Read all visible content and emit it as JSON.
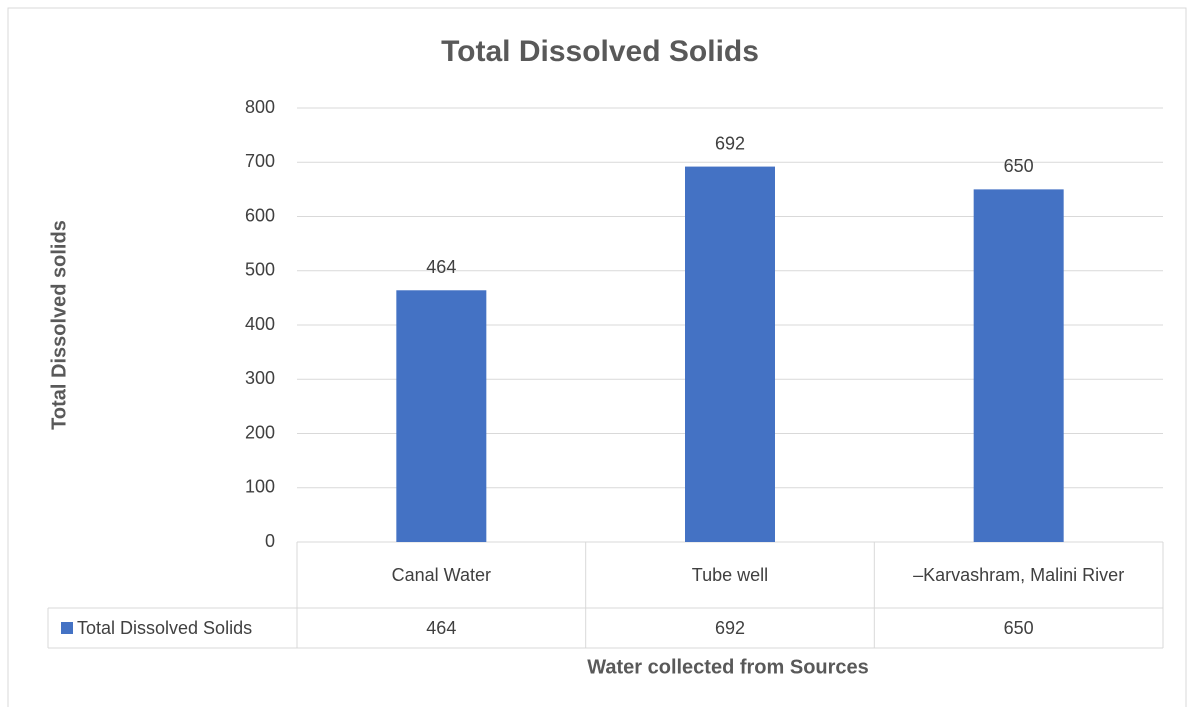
{
  "chart_data": {
    "type": "bar",
    "title": "Total Dissolved Solids",
    "x_label": "Water collected from Sources",
    "y_label": "Total Dissolved solids",
    "categories": [
      "Canal Water",
      "Tube well",
      "–Karvashram, Malini River"
    ],
    "series": [
      {
        "name": "Total Dissolved Solids",
        "color": "#4472c4",
        "values": [
          464,
          692,
          650
        ]
      }
    ],
    "ylim": [
      0,
      800
    ],
    "yticks": [
      0,
      100,
      200,
      300,
      400,
      500,
      600,
      700,
      800
    ],
    "grid": true,
    "data_table": true
  }
}
